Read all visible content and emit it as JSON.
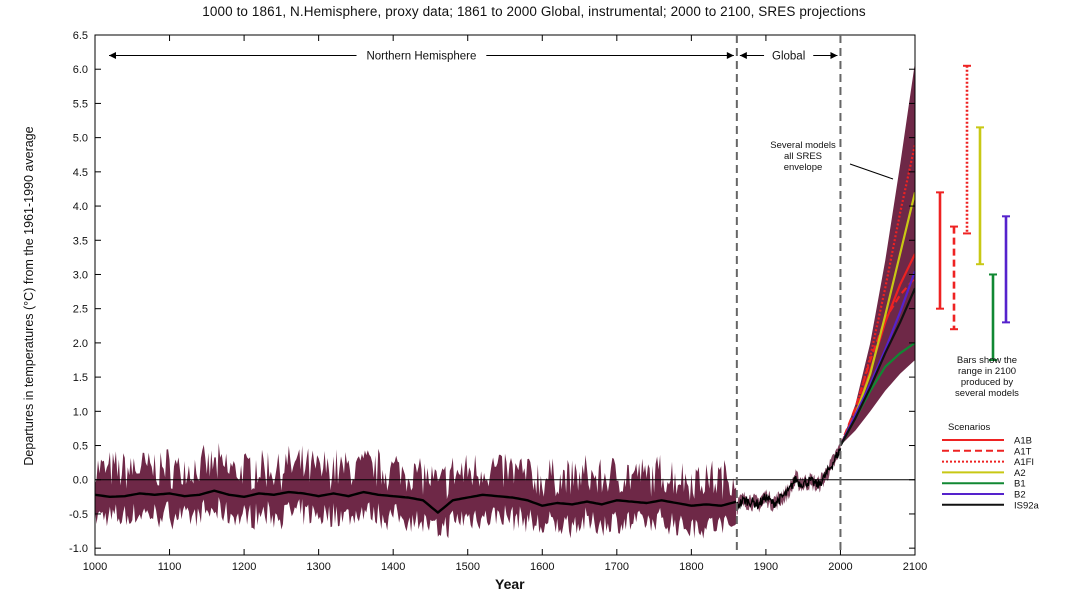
{
  "chart_data": {
    "type": "line",
    "title": "1000 to 1861, N.Hemisphere, proxy data; 1861 to 2000 Global, instrumental; 2000 to 2100, SRES projections",
    "xlabel": "Year",
    "ylabel": "Departures in temperatures (°C) from the 1961-1990 average",
    "xlim": [
      1000,
      2100
    ],
    "ylim": [
      -1.1,
      6.5
    ],
    "x_ticks": [
      1000,
      1100,
      1200,
      1300,
      1400,
      1500,
      1600,
      1700,
      1800,
      1900,
      2000,
      2100
    ],
    "y_ticks": [
      "-1.0",
      "-0.5",
      "0.0",
      "0.5",
      "1.0",
      "1.5",
      "2.0",
      "2.5",
      "3.0",
      "3.5",
      "4.0",
      "4.5",
      "5.0",
      "5.5",
      "6.0",
      "6.5"
    ],
    "regions": [
      {
        "label": "Northern Hemisphere",
        "from": 1000,
        "to": 1861
      },
      {
        "label": "Global",
        "from": 1861,
        "to": 2000
      }
    ],
    "dividers": [
      1861,
      2000
    ],
    "proxy_mean": {
      "x": [
        1000,
        1020,
        1040,
        1060,
        1080,
        1100,
        1120,
        1140,
        1160,
        1180,
        1200,
        1220,
        1240,
        1260,
        1280,
        1300,
        1320,
        1340,
        1360,
        1380,
        1400,
        1420,
        1440,
        1460,
        1480,
        1500,
        1520,
        1540,
        1560,
        1580,
        1600,
        1620,
        1640,
        1660,
        1680,
        1700,
        1720,
        1740,
        1760,
        1780,
        1800,
        1820,
        1840,
        1861
      ],
      "y": [
        -0.22,
        -0.25,
        -0.24,
        -0.2,
        -0.22,
        -0.2,
        -0.24,
        -0.22,
        -0.16,
        -0.22,
        -0.25,
        -0.2,
        -0.22,
        -0.18,
        -0.2,
        -0.24,
        -0.2,
        -0.24,
        -0.18,
        -0.22,
        -0.24,
        -0.26,
        -0.3,
        -0.48,
        -0.3,
        -0.26,
        -0.22,
        -0.24,
        -0.26,
        -0.3,
        -0.38,
        -0.34,
        -0.36,
        -0.32,
        -0.36,
        -0.3,
        -0.32,
        -0.34,
        -0.3,
        -0.34,
        -0.38,
        -0.36,
        -0.38,
        -0.32
      ]
    },
    "proxy_band": {
      "lower": -0.6,
      "upper": 0.25
    },
    "instrumental": {
      "x": [
        1861,
        1870,
        1880,
        1890,
        1900,
        1910,
        1920,
        1930,
        1940,
        1945,
        1950,
        1960,
        1970,
        1980,
        1990,
        2000
      ],
      "y": [
        -0.38,
        -0.3,
        -0.32,
        -0.36,
        -0.25,
        -0.35,
        -0.27,
        -0.18,
        0.02,
        -0.05,
        -0.05,
        -0.02,
        -0.08,
        0.06,
        0.25,
        0.45
      ]
    },
    "envelope": {
      "x": [
        2000,
        2020,
        2040,
        2060,
        2080,
        2100
      ],
      "upper": [
        0.5,
        1.1,
        2.0,
        3.2,
        4.6,
        6.1
      ],
      "lower": [
        0.5,
        0.72,
        1.0,
        1.3,
        1.55,
        1.75
      ]
    },
    "envelope_note": [
      "Several models",
      "all SRES",
      "envelope"
    ],
    "series": [
      {
        "name": "A1B",
        "color": "#ee2222",
        "dash": "solid",
        "x": [
          2000,
          2020,
          2040,
          2060,
          2080,
          2100
        ],
        "y": [
          0.5,
          0.95,
          1.6,
          2.3,
          2.85,
          3.3
        ]
      },
      {
        "name": "A1T",
        "color": "#ee2222",
        "dash": "dashed",
        "x": [
          2000,
          2020,
          2040,
          2060,
          2080,
          2100
        ],
        "y": [
          0.5,
          1.05,
          1.75,
          2.35,
          2.7,
          2.95
        ]
      },
      {
        "name": "A1FI",
        "color": "#ee2222",
        "dash": "dotted",
        "x": [
          2000,
          2020,
          2040,
          2060,
          2080,
          2100
        ],
        "y": [
          0.5,
          1.0,
          1.8,
          2.8,
          3.9,
          4.9
        ]
      },
      {
        "name": "A2",
        "color": "#c8c814",
        "dash": "solid",
        "x": [
          2000,
          2020,
          2040,
          2060,
          2080,
          2100
        ],
        "y": [
          0.5,
          0.95,
          1.55,
          2.4,
          3.3,
          4.2
        ]
      },
      {
        "name": "B1",
        "color": "#118833",
        "dash": "solid",
        "x": [
          2000,
          2020,
          2040,
          2060,
          2080,
          2100
        ],
        "y": [
          0.5,
          0.9,
          1.3,
          1.65,
          1.85,
          2.0
        ]
      },
      {
        "name": "B2",
        "color": "#5522cc",
        "dash": "solid",
        "x": [
          2000,
          2020,
          2040,
          2060,
          2080,
          2100
        ],
        "y": [
          0.5,
          0.95,
          1.4,
          1.9,
          2.45,
          3.05
        ]
      },
      {
        "name": "IS92a",
        "color": "#111111",
        "dash": "solid",
        "x": [
          2000,
          2020,
          2040,
          2060,
          2080,
          2100
        ],
        "y": [
          0.5,
          0.9,
          1.35,
          1.85,
          2.3,
          2.8
        ]
      }
    ],
    "range_bars_2100": [
      {
        "name": "A1B",
        "color": "#ee2222",
        "dash": "solid",
        "low": 2.5,
        "high": 4.2
      },
      {
        "name": "A1T",
        "color": "#ee2222",
        "dash": "dashed",
        "low": 2.2,
        "high": 3.7
      },
      {
        "name": "A1FI",
        "color": "#ee2222",
        "dash": "dotted",
        "low": 3.6,
        "high": 6.05
      },
      {
        "name": "A2",
        "color": "#c8c814",
        "dash": "solid",
        "low": 3.15,
        "high": 5.15
      },
      {
        "name": "B1",
        "color": "#118833",
        "dash": "solid",
        "low": 1.75,
        "high": 3.0
      },
      {
        "name": "B2",
        "color": "#5522cc",
        "dash": "solid",
        "low": 2.3,
        "high": 3.85
      }
    ],
    "bars_note": [
      "Bars show the",
      "range in 2100",
      "produced by",
      "several models"
    ],
    "legend_title": "Scenarios",
    "legend_position": "right",
    "colors": {
      "band": "#6e2847",
      "mean_line": "#000000",
      "divider": "#666666"
    }
  }
}
